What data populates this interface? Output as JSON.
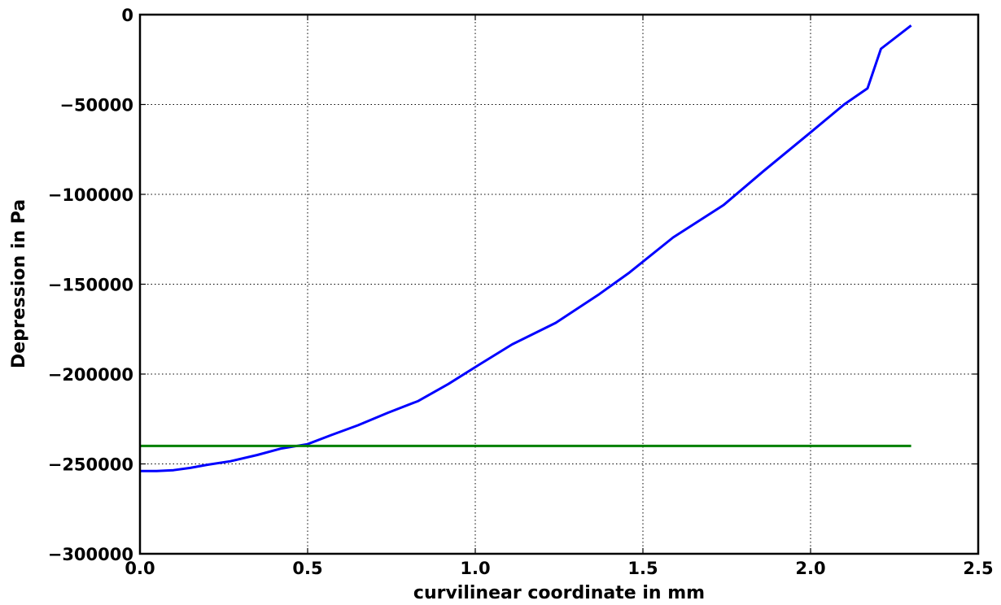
{
  "chart_data": {
    "type": "line",
    "xlabel": "curvilinear coordinate in mm",
    "ylabel": "Depression in Pa",
    "xlim": [
      0.0,
      2.5
    ],
    "ylim": [
      -300000,
      0
    ],
    "xticks": [
      0.0,
      0.5,
      1.0,
      1.5,
      2.0,
      2.5
    ],
    "yticks": [
      0,
      -50000,
      -100000,
      -150000,
      -200000,
      -250000,
      -300000
    ],
    "xtick_labels": [
      "0.0",
      "0.5",
      "1.0",
      "1.5",
      "2.0",
      "2.5"
    ],
    "ytick_labels": [
      "0",
      "−50000",
      "−100000",
      "−150000",
      "−200000",
      "−250000",
      "−300000"
    ],
    "grid": true,
    "series": [
      {
        "color": "#0000ff",
        "x": [
          0.0,
          0.05,
          0.1,
          0.15,
          0.2,
          0.27,
          0.35,
          0.42,
          0.5,
          0.57,
          0.65,
          0.74,
          0.83,
          0.92,
          1.01,
          1.11,
          1.24,
          1.37,
          1.46,
          1.59,
          1.74,
          1.86,
          2.0,
          2.1,
          2.17,
          2.21,
          2.3
        ],
        "y": [
          -254000,
          -254000,
          -253500,
          -252200,
          -250500,
          -248500,
          -245000,
          -241500,
          -239000,
          -234000,
          -228500,
          -221500,
          -215000,
          -205500,
          -195000,
          -183500,
          -171500,
          -155500,
          -143500,
          -124000,
          -106000,
          -87000,
          -65500,
          -50000,
          -41000,
          -19000,
          -6000
        ]
      },
      {
        "color": "#008000",
        "x": [
          0.0,
          2.3
        ],
        "y": [
          -240000,
          -240000
        ]
      }
    ]
  }
}
